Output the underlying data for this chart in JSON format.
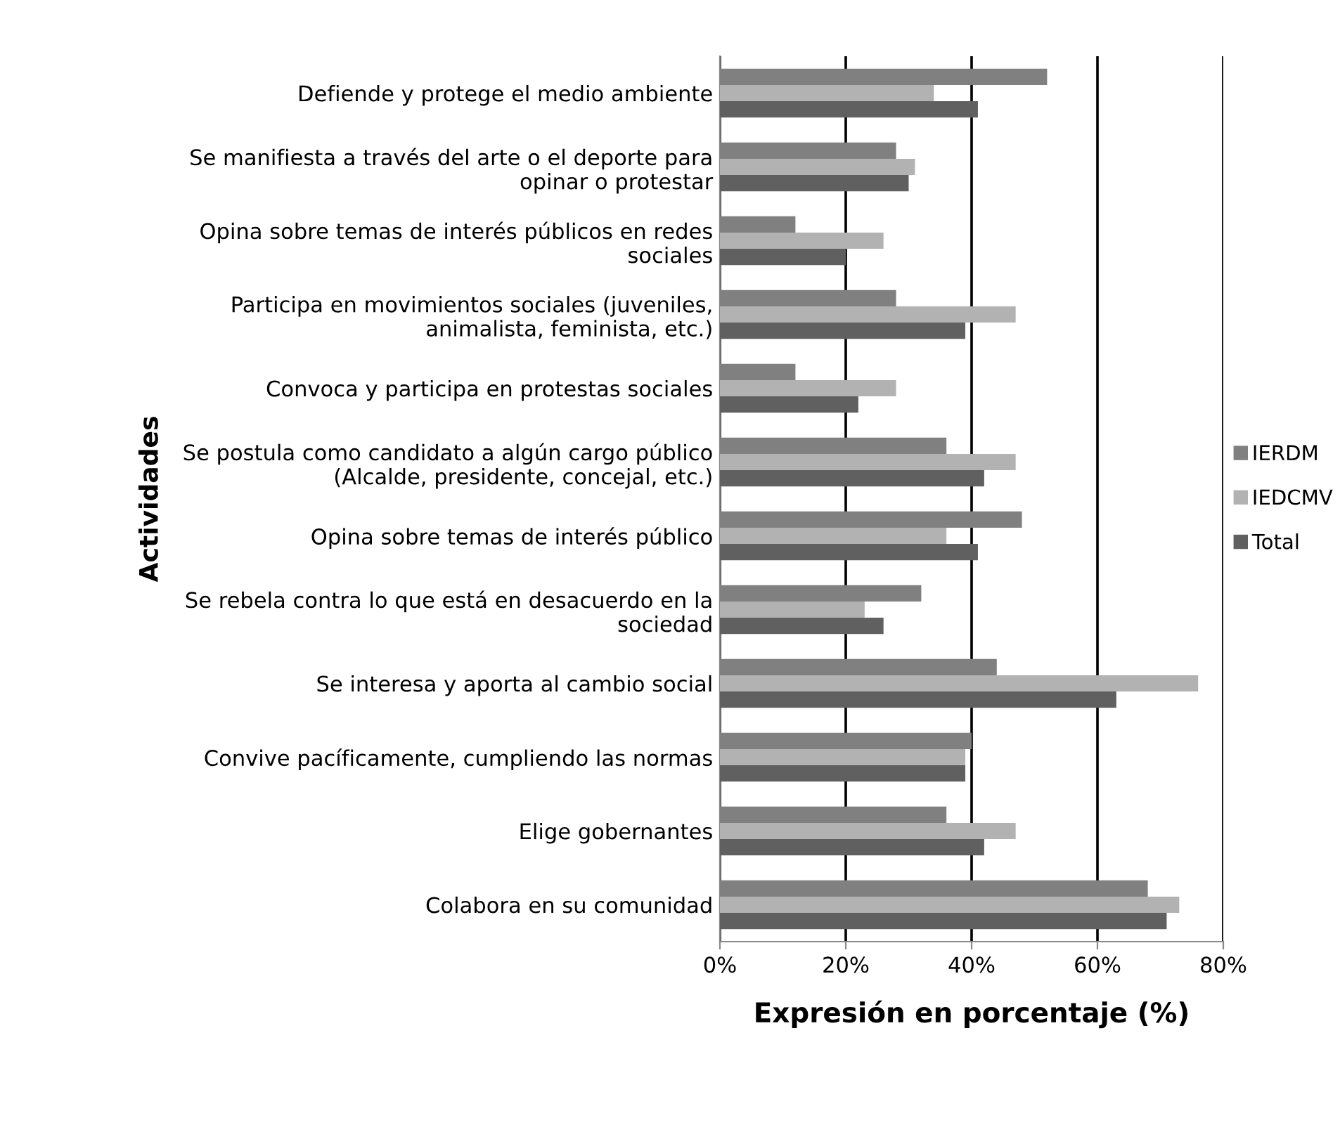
{
  "chart_data": {
    "type": "bar",
    "orientation": "horizontal",
    "xlabel": "Expresión en porcentaje (%)",
    "ylabel": "Actividades",
    "categories": [
      "Defiende y protege el medio ambiente",
      "Se manifiesta a través del arte o el deporte para\nopinar o protestar",
      "Opina sobre temas de interés públicos en redes\nsociales",
      "Participa en movimientos sociales (juveniles,\nanimalista, feminista, etc.)",
      "Convoca y participa en protestas sociales",
      "Se postula como candidato a algún cargo público\n(Alcalde, presidente, concejal, etc.)",
      "Opina sobre temas de interés público",
      "Se rebela contra lo que está en desacuerdo en la\nsociedad",
      "Se interesa y aporta al cambio social",
      "Convive pacíficamente, cumpliendo las normas",
      "Elige gobernantes",
      "Colabora en su comunidad"
    ],
    "series": [
      {
        "name": "IERDM",
        "color": "#808080",
        "values": [
          52,
          28,
          12,
          28,
          12,
          36,
          48,
          32,
          44,
          40,
          36,
          68
        ]
      },
      {
        "name": "IEDCMV",
        "color": "#b2b2b2",
        "values": [
          34,
          31,
          26,
          47,
          28,
          47,
          36,
          23,
          76,
          39,
          47,
          73
        ]
      },
      {
        "name": "Total",
        "color": "#606060",
        "values": [
          41,
          30,
          20,
          39,
          22,
          42,
          41,
          26,
          63,
          39,
          42,
          71
        ]
      }
    ],
    "xlim": [
      0,
      80
    ],
    "xticks": [
      {
        "value": 0,
        "label": "0%"
      },
      {
        "value": 20,
        "label": "20%"
      },
      {
        "value": 40,
        "label": "40%"
      },
      {
        "value": 60,
        "label": "60%"
      },
      {
        "value": 80,
        "label": "80%"
      }
    ],
    "grid": "x",
    "legend": "right"
  }
}
